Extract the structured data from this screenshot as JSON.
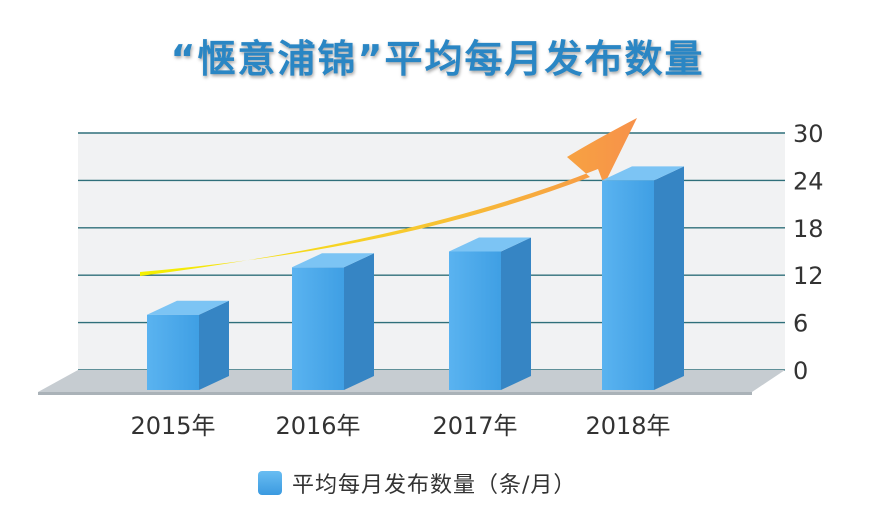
{
  "chart_data": {
    "type": "bar",
    "title": "“惬意浦锦”平均每月发布数量",
    "categories": [
      "2015年",
      "2016年",
      "2017年",
      "2018年"
    ],
    "series": [
      {
        "name": "平均每月发布数量（条/月）",
        "values": [
          7,
          13,
          15,
          24
        ]
      }
    ],
    "yticks": [
      0,
      6,
      12,
      18,
      24,
      30
    ],
    "ylim": [
      0,
      30
    ],
    "grid": true,
    "legend_position": "bottom",
    "trend_arrow": true
  },
  "colors": {
    "title": "#2a86c4",
    "bar_front": "#4aa9ec",
    "bar_side": "#3685c4",
    "bar_top": "#7cc4f4",
    "grid": "#2f6f7a",
    "arrow_start": "#f4f000",
    "arrow_end": "#f7914a"
  }
}
